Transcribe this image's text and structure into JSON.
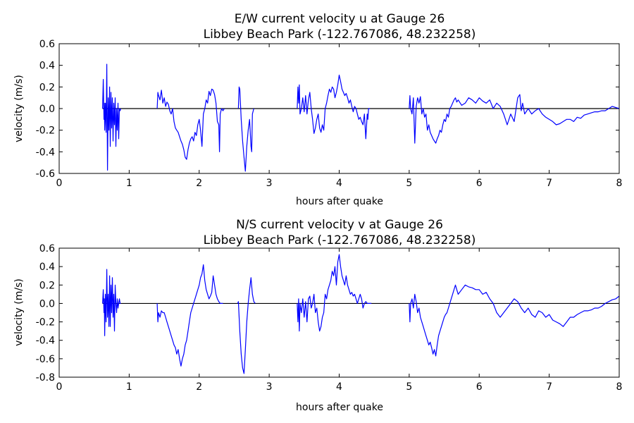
{
  "chart_data": [
    {
      "type": "line",
      "title": "E/W current velocity u at Gauge 26",
      "subtitle": "Libbey Beach Park  (-122.767086, 48.232258)",
      "xlabel": "hours after quake",
      "ylabel": "velocity (m/s)",
      "xlim": [
        0,
        8
      ],
      "ylim": [
        -0.6,
        0.6
      ],
      "xticks": [
        "0",
        "1",
        "2",
        "3",
        "4",
        "5",
        "6",
        "7",
        "8"
      ],
      "yticks": [
        "-0.6",
        "-0.4",
        "-0.2",
        "0.0",
        "0.2",
        "0.4",
        "0.6"
      ],
      "grid": false,
      "colors": {
        "series": "#0000ff",
        "zero_line": "#000000"
      },
      "zero_line": {
        "x": [
          0.62,
          8.0
        ],
        "y": 0
      },
      "series": [
        {
          "x": [
            0.62,
            0.63,
            0.64,
            0.645,
            0.65,
            0.66,
            0.67,
            0.68,
            0.69,
            0.7,
            0.71,
            0.72,
            0.73,
            0.74,
            0.75,
            0.76,
            0.77,
            0.78,
            0.79,
            0.8,
            0.81,
            0.82,
            0.83,
            0.84,
            0.85,
            0.86,
            0.87,
            0.88
          ],
          "y": [
            0.0,
            0.27,
            -0.1,
            0.05,
            -0.2,
            0.05,
            -0.22,
            0.41,
            -0.57,
            0.1,
            -0.2,
            0.2,
            -0.35,
            0.15,
            -0.18,
            0.1,
            -0.3,
            0.05,
            -0.15,
            0.1,
            -0.35,
            0.0,
            -0.2,
            0.05,
            -0.28,
            0.0,
            -0.02,
            0.0
          ]
        },
        {
          "x": [
            1.4,
            1.41,
            1.42,
            1.44,
            1.46,
            1.48,
            1.5,
            1.52,
            1.54,
            1.56,
            1.58,
            1.6,
            1.62,
            1.64,
            1.66,
            1.68,
            1.7,
            1.72,
            1.74,
            1.76,
            1.78,
            1.8,
            1.82,
            1.84,
            1.86,
            1.88,
            1.9,
            1.92,
            1.94,
            1.96,
            1.98,
            2.0,
            2.02,
            2.04,
            2.06,
            2.08,
            2.1,
            2.12,
            2.14,
            2.16,
            2.18,
            2.2,
            2.22,
            2.24,
            2.26,
            2.28,
            2.29,
            2.3,
            2.32,
            2.34,
            2.36
          ],
          "y": [
            0.0,
            0.15,
            0.12,
            0.08,
            0.17,
            0.05,
            0.1,
            0.02,
            0.06,
            0.04,
            -0.02,
            -0.05,
            0.0,
            -0.12,
            -0.18,
            -0.2,
            -0.22,
            -0.26,
            -0.3,
            -0.33,
            -0.38,
            -0.45,
            -0.47,
            -0.38,
            -0.32,
            -0.28,
            -0.26,
            -0.3,
            -0.22,
            -0.25,
            -0.15,
            -0.1,
            -0.2,
            -0.35,
            -0.05,
            0.0,
            0.08,
            0.05,
            0.16,
            0.12,
            0.18,
            0.17,
            0.13,
            0.05,
            -0.12,
            -0.15,
            -0.4,
            -0.05,
            0.0,
            -0.02,
            0.0
          ]
        },
        {
          "x": [
            2.56,
            2.57,
            2.58,
            2.6,
            2.62,
            2.64,
            2.66,
            2.68,
            2.7,
            2.72,
            2.74,
            2.75,
            2.76,
            2.78
          ],
          "y": [
            0.0,
            0.2,
            0.18,
            -0.1,
            -0.3,
            -0.45,
            -0.58,
            -0.35,
            -0.2,
            -0.1,
            -0.35,
            -0.4,
            -0.05,
            0.0
          ]
        },
        {
          "x": [
            3.4,
            3.41,
            3.42,
            3.43,
            3.44,
            3.46,
            3.48,
            3.5,
            3.52,
            3.54,
            3.56,
            3.58,
            3.6,
            3.62,
            3.64,
            3.66,
            3.68,
            3.7,
            3.72,
            3.74,
            3.76,
            3.78,
            3.8,
            3.82,
            3.84,
            3.86,
            3.88,
            3.9,
            3.92,
            3.94,
            3.96,
            3.98,
            4.0,
            4.02,
            4.04,
            4.06,
            4.08,
            4.1,
            4.12,
            4.14,
            4.16,
            4.18,
            4.2,
            4.22,
            4.24,
            4.26,
            4.28,
            4.3,
            4.32,
            4.34,
            4.36,
            4.38,
            4.4,
            4.41,
            4.42,
            4.44
          ],
          "y": [
            0.0,
            0.2,
            0.05,
            0.22,
            -0.05,
            0.0,
            0.1,
            -0.03,
            0.12,
            -0.05,
            0.08,
            0.15,
            0.0,
            -0.1,
            -0.23,
            -0.18,
            -0.1,
            -0.05,
            -0.18,
            -0.22,
            -0.15,
            -0.2,
            0.0,
            0.05,
            0.12,
            0.18,
            0.15,
            0.2,
            0.18,
            0.1,
            0.15,
            0.22,
            0.31,
            0.25,
            0.18,
            0.15,
            0.12,
            0.14,
            0.1,
            0.05,
            0.08,
            0.02,
            -0.03,
            0.02,
            0.0,
            -0.05,
            -0.1,
            -0.08,
            -0.12,
            -0.15,
            -0.05,
            -0.28,
            -0.05,
            -0.1,
            0.0,
            0.0
          ]
        },
        {
          "x": [
            5.0,
            5.01,
            5.02,
            5.04,
            5.06,
            5.08,
            5.1,
            5.12,
            5.14,
            5.16,
            5.18,
            5.2,
            5.22,
            5.24,
            5.26,
            5.28,
            5.3,
            5.32,
            5.34,
            5.36,
            5.38,
            5.4,
            5.42,
            5.44,
            5.46,
            5.48,
            5.5,
            5.52,
            5.54,
            5.56,
            5.58,
            5.6,
            5.62,
            5.64,
            5.66,
            5.68,
            5.7,
            5.75,
            5.8,
            5.85,
            5.9,
            5.95,
            6.0,
            6.05,
            6.1,
            6.15,
            6.2,
            6.25,
            6.3,
            6.35,
            6.4,
            6.45,
            6.5,
            6.55,
            6.58,
            6.6,
            6.62,
            6.65,
            6.7,
            6.75,
            6.8,
            6.85,
            6.9,
            6.95,
            7.0,
            7.05,
            7.1,
            7.15,
            7.2,
            7.25,
            7.3,
            7.35,
            7.4,
            7.45,
            7.5,
            7.55,
            7.6,
            7.65,
            7.7,
            7.75,
            7.8,
            7.85,
            7.9,
            7.95,
            8.0
          ],
          "y": [
            0.0,
            0.12,
            0.0,
            -0.05,
            0.1,
            -0.32,
            0.02,
            0.1,
            0.05,
            0.11,
            -0.05,
            0.0,
            -0.08,
            -0.05,
            -0.2,
            -0.15,
            -0.22,
            -0.25,
            -0.28,
            -0.3,
            -0.32,
            -0.28,
            -0.25,
            -0.2,
            -0.22,
            -0.15,
            -0.1,
            -0.12,
            -0.05,
            -0.08,
            0.0,
            0.02,
            0.05,
            0.08,
            0.1,
            0.06,
            0.08,
            0.03,
            0.05,
            0.1,
            0.08,
            0.05,
            0.1,
            0.07,
            0.05,
            0.08,
            0.0,
            0.05,
            0.02,
            -0.05,
            -0.15,
            -0.05,
            -0.12,
            0.1,
            0.13,
            -0.02,
            0.05,
            -0.05,
            0.0,
            -0.05,
            -0.02,
            0.0,
            -0.05,
            -0.08,
            -0.1,
            -0.12,
            -0.15,
            -0.14,
            -0.12,
            -0.1,
            -0.1,
            -0.12,
            -0.08,
            -0.09,
            -0.06,
            -0.05,
            -0.04,
            -0.03,
            -0.03,
            -0.02,
            -0.02,
            0.0,
            0.02,
            0.01,
            0.0
          ]
        }
      ]
    },
    {
      "type": "line",
      "title": "N/S current velocity v at Gauge 26",
      "subtitle": "Libbey Beach Park  (-122.767086, 48.232258)",
      "xlabel": "hours after quake",
      "ylabel": "velocity (m/s)",
      "xlim": [
        0,
        8
      ],
      "ylim": [
        -0.8,
        0.6
      ],
      "xticks": [
        "0",
        "1",
        "2",
        "3",
        "4",
        "5",
        "6",
        "7",
        "8"
      ],
      "yticks": [
        "-0.8",
        "-0.6",
        "-0.4",
        "-0.2",
        "0.0",
        "0.2",
        "0.4",
        "0.6"
      ],
      "grid": false,
      "colors": {
        "series": "#0000ff",
        "zero_line": "#000000"
      },
      "zero_line": {
        "x": [
          0.62,
          8.0
        ],
        "y": 0
      },
      "series": [
        {
          "x": [
            0.62,
            0.63,
            0.64,
            0.645,
            0.65,
            0.66,
            0.67,
            0.68,
            0.69,
            0.7,
            0.71,
            0.72,
            0.73,
            0.74,
            0.75,
            0.76,
            0.77,
            0.78,
            0.79,
            0.8,
            0.81,
            0.82,
            0.83,
            0.84,
            0.85,
            0.86,
            0.87,
            0.88
          ],
          "y": [
            0.0,
            0.15,
            -0.1,
            0.05,
            -0.35,
            0.1,
            -0.2,
            0.37,
            -0.15,
            0.1,
            -0.25,
            0.3,
            -0.25,
            0.2,
            -0.1,
            0.28,
            -0.15,
            0.1,
            -0.3,
            0.2,
            0.0,
            -0.1,
            0.05,
            -0.05,
            0.0,
            0.05,
            0.0,
            0.0
          ]
        },
        {
          "x": [
            1.4,
            1.41,
            1.42,
            1.44,
            1.46,
            1.48,
            1.5,
            1.52,
            1.54,
            1.56,
            1.58,
            1.6,
            1.62,
            1.64,
            1.66,
            1.68,
            1.7,
            1.72,
            1.74,
            1.76,
            1.78,
            1.8,
            1.82,
            1.84,
            1.86,
            1.88,
            1.9,
            1.92,
            1.94,
            1.96,
            1.98,
            2.0,
            2.02,
            2.04,
            2.06,
            2.08,
            2.1,
            2.12,
            2.14,
            2.16,
            2.18,
            2.2,
            2.22,
            2.24,
            2.26,
            2.28,
            2.3,
            2.32,
            2.34
          ],
          "y": [
            0.0,
            -0.2,
            -0.1,
            -0.15,
            -0.08,
            -0.1,
            -0.1,
            -0.15,
            -0.2,
            -0.25,
            -0.3,
            -0.35,
            -0.4,
            -0.45,
            -0.48,
            -0.55,
            -0.5,
            -0.6,
            -0.68,
            -0.6,
            -0.55,
            -0.45,
            -0.4,
            -0.3,
            -0.2,
            -0.1,
            -0.05,
            0.0,
            0.05,
            0.1,
            0.15,
            0.2,
            0.28,
            0.32,
            0.42,
            0.25,
            0.15,
            0.1,
            0.05,
            0.08,
            0.12,
            0.3,
            0.2,
            0.1,
            0.05,
            0.02,
            0.0,
            0.0,
            0.0
          ]
        },
        {
          "x": [
            2.55,
            2.56,
            2.58,
            2.6,
            2.62,
            2.64,
            2.66,
            2.68,
            2.7,
            2.72,
            2.74,
            2.76,
            2.78,
            2.8
          ],
          "y": [
            0.0,
            0.02,
            -0.3,
            -0.55,
            -0.7,
            -0.76,
            -0.5,
            -0.2,
            0.0,
            0.15,
            0.28,
            0.1,
            0.02,
            0.0
          ]
        },
        {
          "x": [
            3.4,
            3.41,
            3.42,
            3.43,
            3.44,
            3.46,
            3.48,
            3.5,
            3.52,
            3.54,
            3.56,
            3.58,
            3.6,
            3.62,
            3.64,
            3.66,
            3.68,
            3.7,
            3.72,
            3.74,
            3.76,
            3.78,
            3.8,
            3.82,
            3.84,
            3.86,
            3.88,
            3.9,
            3.92,
            3.94,
            3.96,
            3.98,
            4.0,
            4.02,
            4.04,
            4.06,
            4.08,
            4.1,
            4.12,
            4.14,
            4.16,
            4.18,
            4.2,
            4.22,
            4.24,
            4.26,
            4.28,
            4.3,
            4.32,
            4.34,
            4.36,
            4.38,
            4.4,
            4.42,
            4.44,
            4.46
          ],
          "y": [
            0.0,
            -0.2,
            0.05,
            -0.3,
            0.0,
            -0.1,
            0.05,
            -0.15,
            0.02,
            -0.2,
            0.05,
            0.08,
            -0.05,
            0.0,
            0.1,
            -0.1,
            -0.05,
            -0.2,
            -0.3,
            -0.25,
            -0.15,
            -0.1,
            0.1,
            0.05,
            0.15,
            0.2,
            0.25,
            0.35,
            0.3,
            0.4,
            0.2,
            0.45,
            0.53,
            0.4,
            0.3,
            0.25,
            0.2,
            0.3,
            0.2,
            0.15,
            0.1,
            0.12,
            0.08,
            0.1,
            0.05,
            0.0,
            0.05,
            0.1,
            0.05,
            -0.05,
            0.0,
            0.02,
            0.0,
            0.0,
            0.0,
            0.0
          ]
        },
        {
          "x": [
            5.0,
            5.01,
            5.02,
            5.04,
            5.06,
            5.08,
            5.1,
            5.12,
            5.14,
            5.16,
            5.18,
            5.2,
            5.22,
            5.24,
            5.26,
            5.28,
            5.3,
            5.32,
            5.34,
            5.36,
            5.38,
            5.4,
            5.42,
            5.44,
            5.46,
            5.48,
            5.5,
            5.52,
            5.54,
            5.56,
            5.58,
            5.6,
            5.62,
            5.64,
            5.66,
            5.68,
            5.7,
            5.75,
            5.8,
            5.85,
            5.9,
            5.95,
            6.0,
            6.05,
            6.1,
            6.15,
            6.2,
            6.25,
            6.3,
            6.35,
            6.4,
            6.45,
            6.5,
            6.55,
            6.6,
            6.65,
            6.7,
            6.75,
            6.8,
            6.85,
            6.9,
            6.95,
            7.0,
            7.05,
            7.1,
            7.15,
            7.2,
            7.25,
            7.3,
            7.35,
            7.4,
            7.45,
            7.5,
            7.55,
            7.6,
            7.65,
            7.7,
            7.75,
            7.8,
            7.85,
            7.9,
            7.95,
            8.0
          ],
          "y": [
            0.0,
            -0.2,
            0.0,
            0.05,
            -0.05,
            0.1,
            0.02,
            -0.1,
            -0.05,
            -0.15,
            -0.2,
            -0.25,
            -0.3,
            -0.35,
            -0.4,
            -0.45,
            -0.42,
            -0.48,
            -0.55,
            -0.5,
            -0.57,
            -0.45,
            -0.35,
            -0.3,
            -0.25,
            -0.2,
            -0.15,
            -0.12,
            -0.1,
            -0.05,
            0.0,
            0.05,
            0.1,
            0.15,
            0.2,
            0.15,
            0.1,
            0.15,
            0.2,
            0.18,
            0.17,
            0.15,
            0.15,
            0.1,
            0.12,
            0.05,
            0.0,
            -0.1,
            -0.15,
            -0.1,
            -0.05,
            0.0,
            0.05,
            0.02,
            -0.05,
            -0.1,
            -0.05,
            -0.12,
            -0.15,
            -0.08,
            -0.1,
            -0.15,
            -0.12,
            -0.18,
            -0.2,
            -0.22,
            -0.25,
            -0.2,
            -0.15,
            -0.15,
            -0.12,
            -0.1,
            -0.08,
            -0.08,
            -0.07,
            -0.05,
            -0.05,
            -0.03,
            0.0,
            0.02,
            0.04,
            0.05,
            0.08
          ]
        }
      ]
    }
  ]
}
